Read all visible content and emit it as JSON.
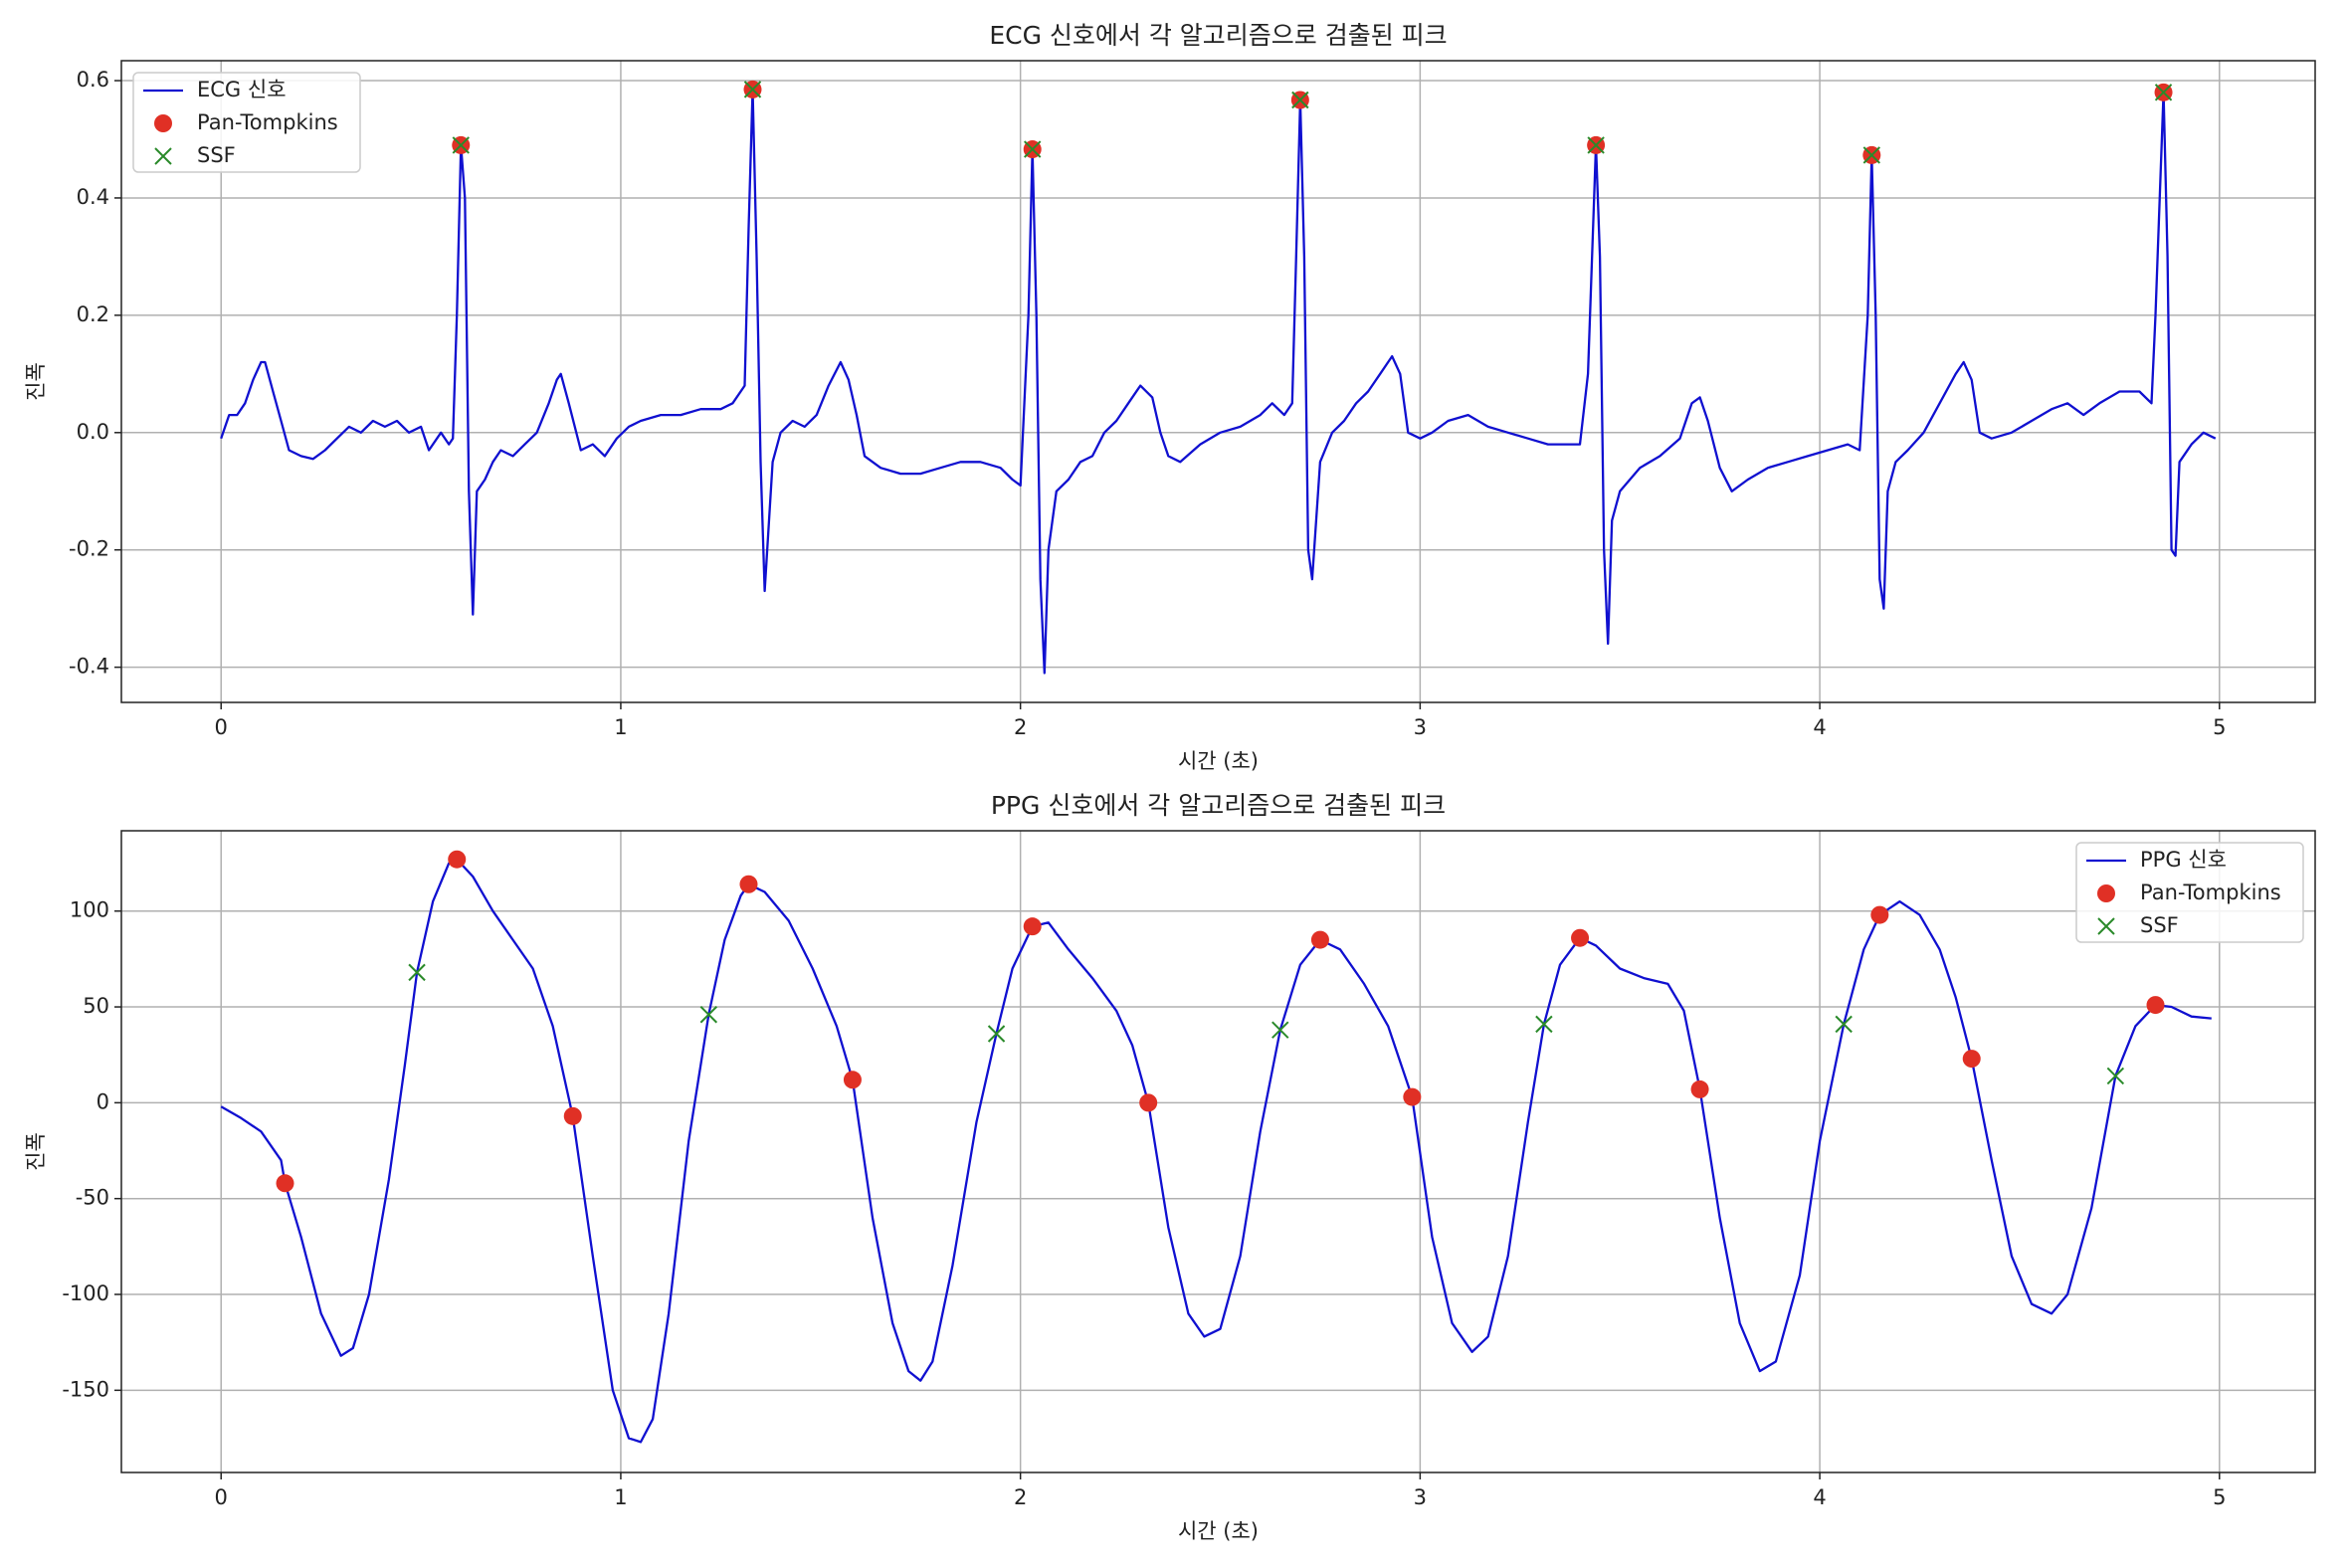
{
  "chart_data": [
    {
      "type": "line",
      "title": "ECG 신호에서 각 알고리즘으로 검출된 피크",
      "xlabel": "시간 (초)",
      "ylabel": "진폭",
      "xlim": [
        -0.2495,
        5.2395
      ],
      "ylim": [
        -0.46,
        0.634
      ],
      "xticks": [
        0,
        1,
        2,
        3,
        4,
        5
      ],
      "yticks": [
        -0.4,
        -0.2,
        {
          "value": 0,
          "label": "0.0"
        },
        0.2,
        0.4,
        0.6
      ],
      "grid": true,
      "legend": "upper-left",
      "series": [
        {
          "name": "ECG 신호",
          "color": "#1010d0",
          "style": "line",
          "x": [
            0,
            0.02,
            0.04,
            0.06,
            0.08,
            0.1,
            0.11,
            0.13,
            0.15,
            0.17,
            0.2,
            0.23,
            0.26,
            0.29,
            0.32,
            0.35,
            0.38,
            0.41,
            0.44,
            0.47,
            0.5,
            0.52,
            0.55,
            0.57,
            0.58,
            0.59,
            0.6,
            0.61,
            0.62,
            0.63,
            0.64,
            0.66,
            0.68,
            0.7,
            0.73,
            0.76,
            0.79,
            0.82,
            0.84,
            0.85,
            0.87,
            0.9,
            0.93,
            0.96,
            0.99,
            1.02,
            1.05,
            1.1,
            1.15,
            1.2,
            1.25,
            1.28,
            1.31,
            1.32,
            1.33,
            1.34,
            1.35,
            1.36,
            1.38,
            1.4,
            1.43,
            1.46,
            1.49,
            1.52,
            1.55,
            1.57,
            1.59,
            1.61,
            1.65,
            1.7,
            1.75,
            1.8,
            1.85,
            1.9,
            1.95,
            1.98,
            2.0,
            2.02,
            2.03,
            2.04,
            2.05,
            2.06,
            2.07,
            2.09,
            2.12,
            2.15,
            2.18,
            2.21,
            2.24,
            2.27,
            2.3,
            2.33,
            2.35,
            2.37,
            2.4,
            2.45,
            2.5,
            2.55,
            2.6,
            2.63,
            2.66,
            2.68,
            2.69,
            2.7,
            2.71,
            2.72,
            2.73,
            2.75,
            2.78,
            2.81,
            2.84,
            2.87,
            2.9,
            2.93,
            2.95,
            2.97,
            3.0,
            3.03,
            3.07,
            3.12,
            3.17,
            3.22,
            3.27,
            3.32,
            3.37,
            3.4,
            3.42,
            3.44,
            3.45,
            3.46,
            3.47,
            3.48,
            3.5,
            3.55,
            3.6,
            3.65,
            3.68,
            3.7,
            3.72,
            3.75,
            3.78,
            3.82,
            3.87,
            3.92,
            3.97,
            4.02,
            4.07,
            4.1,
            4.12,
            4.13,
            4.14,
            4.15,
            4.16,
            4.17,
            4.19,
            4.22,
            4.26,
            4.3,
            4.34,
            4.36,
            4.38,
            4.4,
            4.43,
            4.48,
            4.53,
            4.58,
            4.62,
            4.66,
            4.7,
            4.75,
            4.8,
            4.83,
            4.84,
            4.86,
            4.87,
            4.88,
            4.89,
            4.9,
            4.93,
            4.96,
            4.99
          ],
          "values": [
            -0.01,
            0.03,
            0.03,
            0.05,
            0.09,
            0.12,
            0.12,
            0.07,
            0.02,
            -0.03,
            -0.04,
            -0.045,
            -0.03,
            -0.01,
            0.01,
            0.0,
            0.02,
            0.01,
            0.02,
            0.0,
            0.01,
            -0.03,
            0.0,
            -0.02,
            -0.01,
            0.2,
            0.49,
            0.4,
            -0.1,
            -0.31,
            -0.1,
            -0.08,
            -0.05,
            -0.03,
            -0.04,
            -0.02,
            0.0,
            0.05,
            0.09,
            0.1,
            0.05,
            -0.03,
            -0.02,
            -0.04,
            -0.01,
            0.01,
            0.02,
            0.03,
            0.03,
            0.04,
            0.04,
            0.05,
            0.08,
            0.35,
            0.585,
            0.3,
            -0.05,
            -0.27,
            -0.05,
            0.0,
            0.02,
            0.01,
            0.03,
            0.08,
            0.12,
            0.09,
            0.03,
            -0.04,
            -0.06,
            -0.07,
            -0.07,
            -0.06,
            -0.05,
            -0.05,
            -0.06,
            -0.08,
            -0.09,
            0.2,
            0.483,
            0.2,
            -0.25,
            -0.41,
            -0.2,
            -0.1,
            -0.08,
            -0.05,
            -0.04,
            0.0,
            0.02,
            0.05,
            0.08,
            0.06,
            0.0,
            -0.04,
            -0.05,
            -0.02,
            0.0,
            0.01,
            0.03,
            0.05,
            0.03,
            0.05,
            0.3,
            0.567,
            0.3,
            -0.2,
            -0.25,
            -0.05,
            0.0,
            0.02,
            0.05,
            0.07,
            0.1,
            0.13,
            0.1,
            0.0,
            -0.01,
            0.0,
            0.02,
            0.03,
            0.01,
            0.0,
            -0.01,
            -0.02,
            -0.02,
            -0.02,
            0.1,
            0.49,
            0.3,
            -0.2,
            -0.36,
            -0.15,
            -0.1,
            -0.06,
            -0.04,
            -0.01,
            0.05,
            0.06,
            0.02,
            -0.06,
            -0.1,
            -0.08,
            -0.06,
            -0.05,
            -0.04,
            -0.03,
            -0.02,
            -0.03,
            0.2,
            0.473,
            0.2,
            -0.25,
            -0.3,
            -0.1,
            -0.05,
            -0.03,
            0.0,
            0.05,
            0.1,
            0.12,
            0.09,
            0.0,
            -0.01,
            0.0,
            0.02,
            0.04,
            0.05,
            0.03,
            0.05,
            0.07,
            0.07,
            0.05,
            0.2,
            0.58,
            0.3,
            -0.2,
            -0.21,
            -0.05,
            -0.02,
            0.0,
            -0.01
          ]
        },
        {
          "name": "Pan-Tompkins",
          "color": "#e03025",
          "style": "circle",
          "x": [
            0.6,
            1.33,
            2.03,
            2.7,
            3.44,
            4.13,
            4.86
          ],
          "values": [
            0.49,
            0.585,
            0.483,
            0.567,
            0.49,
            0.473,
            0.58
          ]
        },
        {
          "name": "SSF",
          "color": "#2a8a2a",
          "style": "cross",
          "x": [
            0.6,
            1.33,
            2.03,
            2.7,
            3.44,
            4.13,
            4.86
          ],
          "values": [
            0.49,
            0.585,
            0.483,
            0.567,
            0.49,
            0.473,
            0.58
          ]
        }
      ]
    },
    {
      "type": "line",
      "title": "PPG 신호에서 각 알고리즘으로 검출된 피크",
      "xlabel": "시간 (초)",
      "ylabel": "진폭",
      "xlim": [
        -0.2495,
        5.2395
      ],
      "ylim": [
        -192.9,
        141.9
      ],
      "xticks": [
        0,
        1,
        2,
        3,
        4,
        5
      ],
      "yticks": [
        -150,
        -100,
        -50,
        0,
        50,
        100
      ],
      "grid": true,
      "legend": "upper-right",
      "series": [
        {
          "name": "PPG 신호",
          "color": "#1010d0",
          "style": "line",
          "x": [
            0,
            0.05,
            0.1,
            0.15,
            0.16,
            0.2,
            0.25,
            0.3,
            0.33,
            0.37,
            0.42,
            0.46,
            0.49,
            0.53,
            0.57,
            0.59,
            0.63,
            0.68,
            0.73,
            0.78,
            0.83,
            0.88,
            0.93,
            0.98,
            1.02,
            1.05,
            1.08,
            1.12,
            1.17,
            1.22,
            1.26,
            1.3,
            1.32,
            1.36,
            1.42,
            1.48,
            1.54,
            1.58,
            1.63,
            1.68,
            1.72,
            1.75,
            1.78,
            1.83,
            1.89,
            1.94,
            1.98,
            2.03,
            2.07,
            2.12,
            2.18,
            2.24,
            2.28,
            2.32,
            2.37,
            2.42,
            2.46,
            2.5,
            2.55,
            2.6,
            2.65,
            2.7,
            2.75,
            2.8,
            2.86,
            2.92,
            2.98,
            3.03,
            3.08,
            3.13,
            3.17,
            3.22,
            3.27,
            3.31,
            3.35,
            3.4,
            3.44,
            3.5,
            3.56,
            3.62,
            3.66,
            3.7,
            3.75,
            3.8,
            3.85,
            3.89,
            3.95,
            4.0,
            4.06,
            4.11,
            4.15,
            4.2,
            4.25,
            4.3,
            4.34,
            4.38,
            4.43,
            4.48,
            4.53,
            4.58,
            4.62,
            4.68,
            4.74,
            4.79,
            4.84,
            4.88,
            4.93,
            4.98
          ],
          "values": [
            -2,
            -8,
            -15,
            -30,
            -42,
            -70,
            -110,
            -132,
            -128,
            -100,
            -40,
            20,
            68,
            105,
            125,
            127,
            118,
            100,
            85,
            70,
            40,
            -7,
            -80,
            -150,
            -175,
            -177,
            -165,
            -110,
            -20,
            46,
            85,
            108,
            114,
            110,
            95,
            70,
            40,
            12,
            -60,
            -115,
            -140,
            -145,
            -135,
            -85,
            -10,
            36,
            70,
            92,
            94,
            80,
            65,
            48,
            30,
            0,
            -65,
            -110,
            -122,
            -118,
            -80,
            -15,
            38,
            72,
            85,
            80,
            62,
            40,
            3,
            -70,
            -115,
            -130,
            -122,
            -80,
            -10,
            41,
            72,
            86,
            82,
            70,
            65,
            62,
            48,
            7,
            -60,
            -115,
            -140,
            -135,
            -90,
            -20,
            41,
            80,
            98,
            105,
            98,
            80,
            55,
            23,
            -30,
            -80,
            -105,
            -110,
            -100,
            -55,
            14,
            40,
            51,
            50,
            45,
            44
          ]
        },
        {
          "name": "Pan-Tompkins",
          "color": "#e03025",
          "style": "circle",
          "x": [
            0.16,
            0.59,
            0.88,
            1.32,
            1.58,
            2.03,
            2.32,
            2.75,
            2.98,
            3.4,
            3.7,
            4.15,
            4.38,
            4.84
          ],
          "values": [
            -42,
            127,
            -7,
            114,
            12,
            92,
            0,
            85,
            3,
            86,
            7,
            98,
            23,
            51
          ]
        },
        {
          "name": "SSF",
          "color": "#2a8a2a",
          "style": "cross",
          "x": [
            0.49,
            1.22,
            1.94,
            2.65,
            3.31,
            4.06,
            4.74
          ],
          "values": [
            68,
            46,
            36,
            38,
            41,
            41,
            14
          ]
        }
      ]
    }
  ]
}
